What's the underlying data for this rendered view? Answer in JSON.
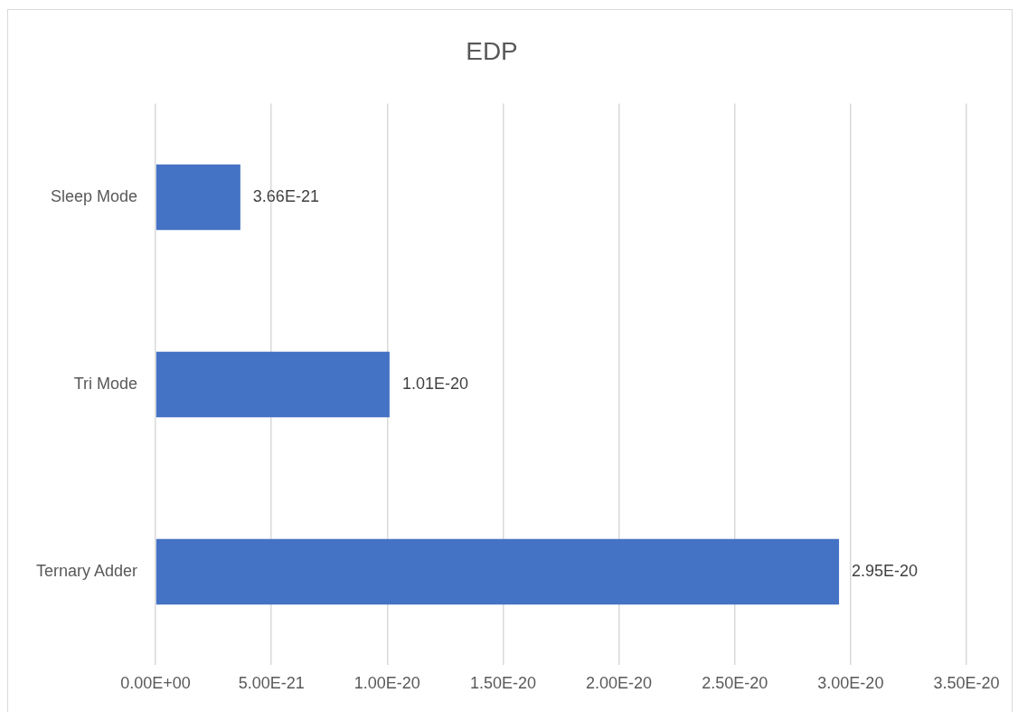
{
  "chart_data": {
    "type": "bar",
    "title": "EDP",
    "orientation": "horizontal",
    "categories": [
      "Sleep Mode",
      "Tri Mode",
      "Ternary Adder"
    ],
    "values": [
      3.66e-21,
      1.01e-20,
      2.95e-20
    ],
    "value_labels": [
      "3.66E-21",
      "1.01E-20",
      "2.95E-20"
    ],
    "color": "#4472c4",
    "xlim": [
      0,
      3.5e-20
    ],
    "xticks": [
      {
        "value": 0,
        "label": "0.00E+00"
      },
      {
        "value": 5e-21,
        "label": "5.00E-21"
      },
      {
        "value": 1e-20,
        "label": "1.00E-20"
      },
      {
        "value": 1.5e-20,
        "label": "1.50E-20"
      },
      {
        "value": 2e-20,
        "label": "2.00E-20"
      },
      {
        "value": 2.5e-20,
        "label": "2.50E-20"
      },
      {
        "value": 3e-20,
        "label": "3.00E-20"
      },
      {
        "value": 3.5e-20,
        "label": "3.50E-20"
      }
    ],
    "grid": "x",
    "legend": false
  }
}
